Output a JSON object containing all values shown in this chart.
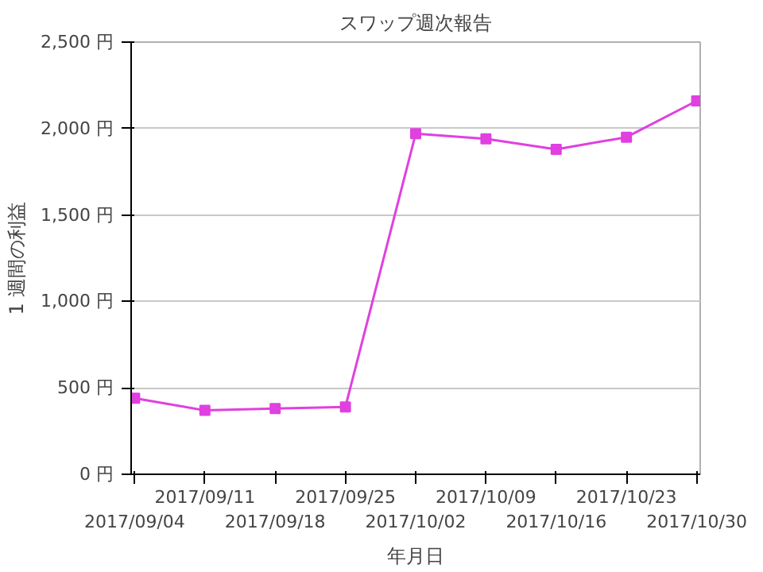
{
  "chart_data": {
    "type": "line",
    "title": "スワップ週次報告",
    "xlabel": "年月日",
    "ylabel": "1 週間の利益",
    "categories": [
      "2017/09/04",
      "2017/09/11",
      "2017/09/18",
      "2017/09/25",
      "2017/10/02",
      "2017/10/09",
      "2017/10/16",
      "2017/10/23",
      "2017/10/30"
    ],
    "series": [
      {
        "color": "#e040e0",
        "values": [
          440,
          370,
          380,
          390,
          1970,
          1940,
          1880,
          1950,
          2160
        ]
      }
    ],
    "ylim": [
      0,
      2500
    ],
    "yticks": [
      {
        "value": 0,
        "label": "0 円"
      },
      {
        "value": 500,
        "label": "500 円"
      },
      {
        "value": 1000,
        "label": "1,000 円"
      },
      {
        "value": 1500,
        "label": "1,500 円"
      },
      {
        "value": 2000,
        "label": "2,000 円"
      },
      {
        "value": 2500,
        "label": "2,500 円"
      }
    ],
    "grid": "y",
    "marker": "square",
    "line_style": "solid"
  }
}
